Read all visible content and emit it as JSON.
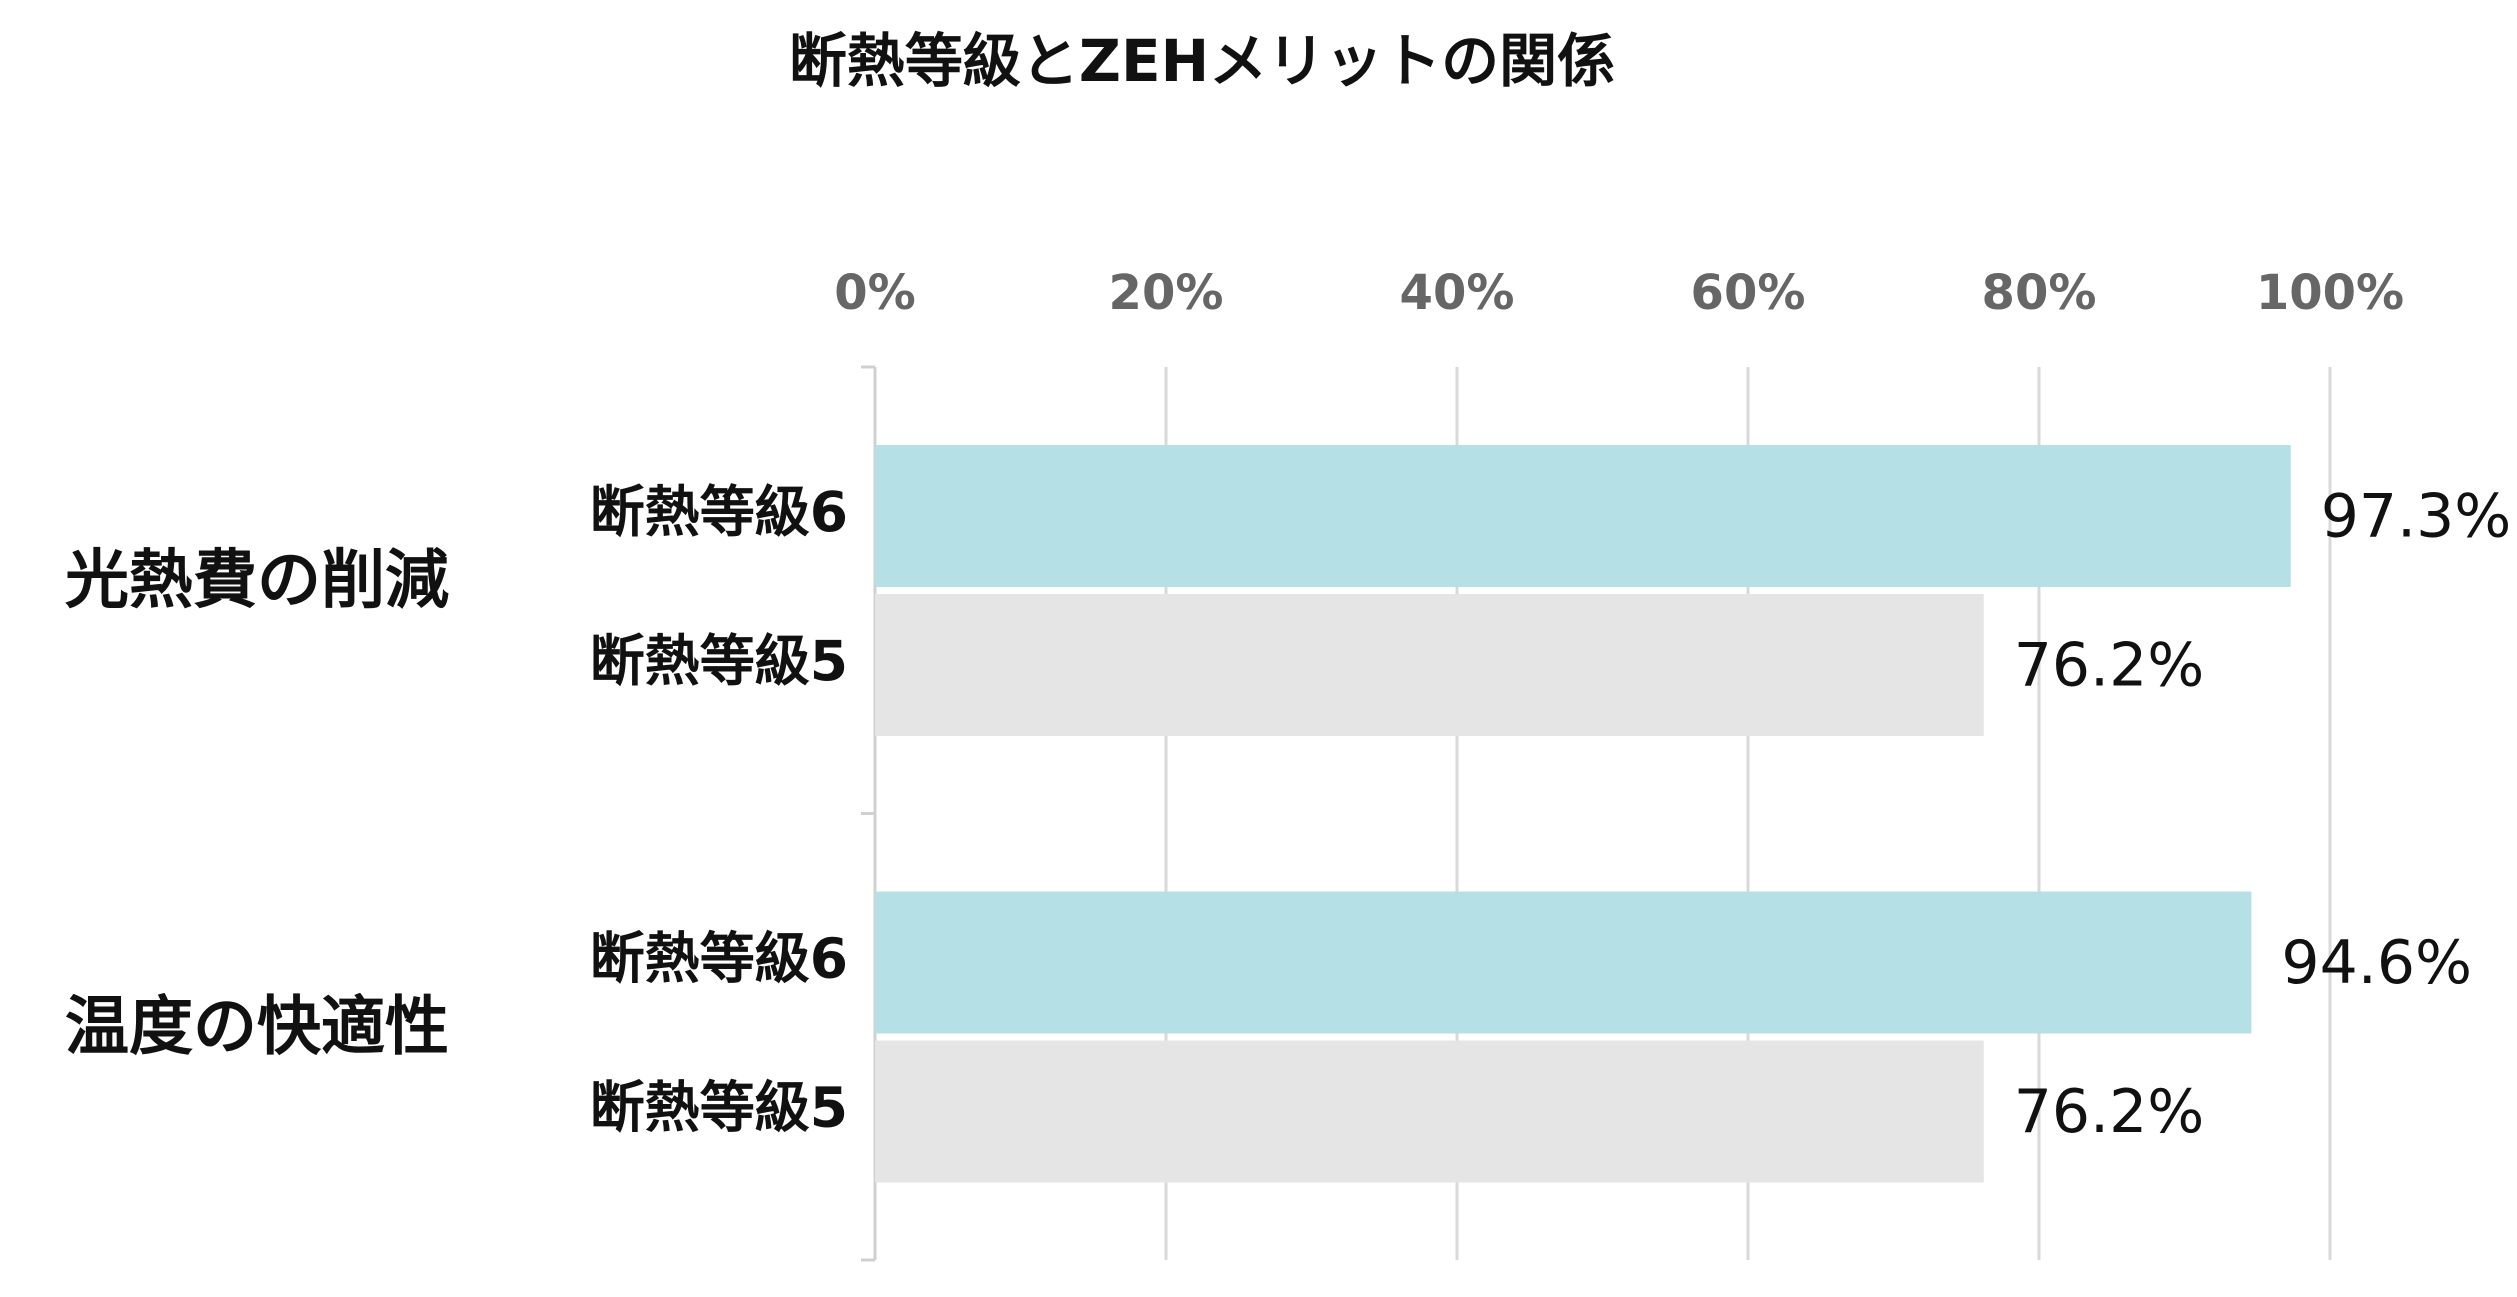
{
  "chart_data": {
    "type": "hbar",
    "title": "断熱等級とZEHメリットの関係",
    "categories": [
      "光熱費の削減",
      "温度の快適性"
    ],
    "series": [
      {
        "name": "断熱等級6",
        "color": "#b5e0e6",
        "values": [
          97.3,
          94.6
        ],
        "value_labels": [
          "97.3%",
          "94.6%"
        ]
      },
      {
        "name": "断熱等級5",
        "color": "#e5e5e5",
        "values": [
          76.2,
          76.2
        ],
        "value_labels": [
          "76.2%",
          "76.2%"
        ]
      }
    ],
    "xlim": [
      0,
      100
    ],
    "xticks": [
      {
        "value": 0,
        "label": "0%"
      },
      {
        "value": 20,
        "label": "20%"
      },
      {
        "value": 40,
        "label": "40%"
      },
      {
        "value": 60,
        "label": "60%"
      },
      {
        "value": 80,
        "label": "80%"
      },
      {
        "value": 100,
        "label": "100%"
      }
    ],
    "grid": true
  }
}
